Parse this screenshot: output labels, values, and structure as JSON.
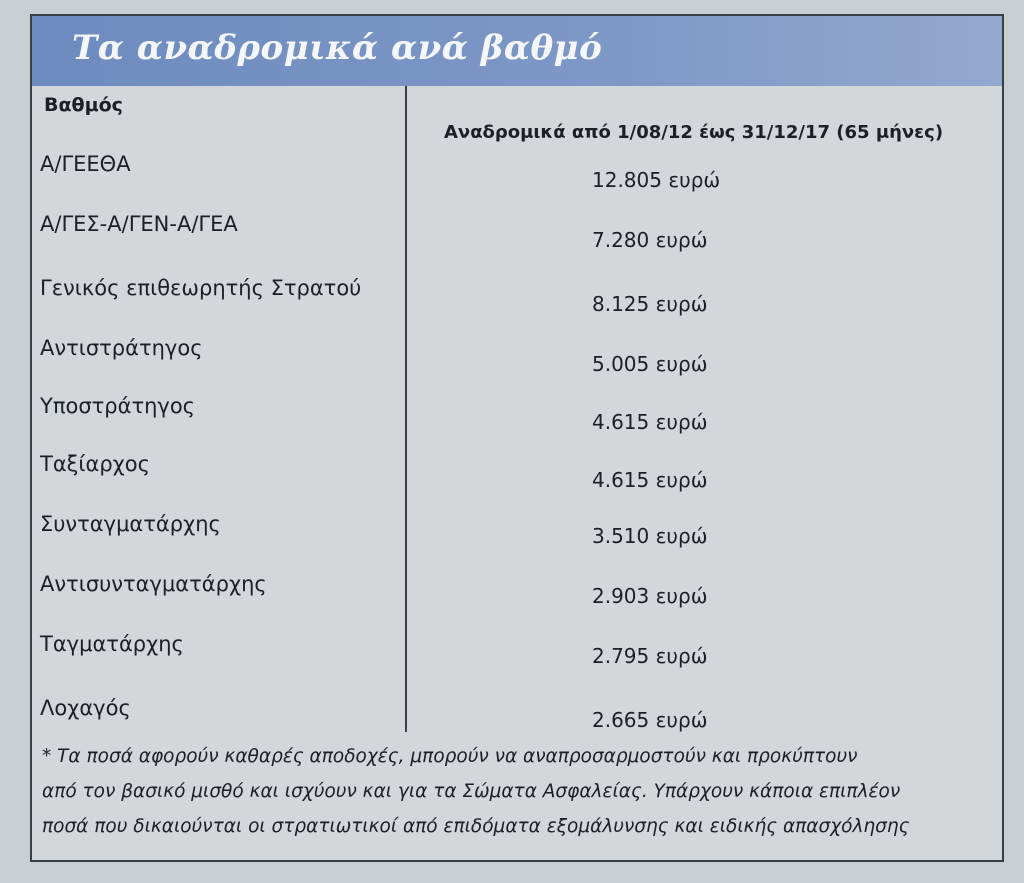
{
  "header": {
    "title": "Τα αναδρομικά ανά βαθμό"
  },
  "table": {
    "columns": [
      "Βαθμός",
      "Αναδρομικά από 1/08/12 έως 31/12/17 (65 μήνες)"
    ],
    "rows": [
      [
        "Α/ΓΕΕΘΑ",
        "12.805 ευρώ"
      ],
      [
        "Α/ΓΕΣ-Α/ΓΕΝ-Α/ΓΕΑ",
        "7.280 ευρώ"
      ],
      [
        "Γενικός επιθεωρητής Στρατού",
        "8.125 ευρώ"
      ],
      [
        "Αντιστράτηγος",
        "5.005 ευρώ"
      ],
      [
        "Υποστράτηγος",
        "4.615 ευρώ"
      ],
      [
        "Ταξίαρχος",
        "4.615 ευρώ"
      ],
      [
        "Συνταγματάρχης",
        "3.510 ευρώ"
      ],
      [
        "Αντισυνταγματάρχης",
        "2.903 ευρώ"
      ],
      [
        "Ταγματάρχης",
        "2.795 ευρώ"
      ],
      [
        "Λοχαγός",
        "2.665 ευρώ"
      ]
    ]
  },
  "footnote": [
    "* Τα ποσά αφορούν καθαρές αποδοχές, μπορούν να αναπροσαρμοστούν και προκύπτουν",
    "από τον βασικό μισθό και ισχύουν και για τα Σώματα Ασφαλείας. Υπάρχουν κάποια επιπλέον",
    "ποσά που δικαιούνται οι στρατιωτικοί από επιδόματα εξομάλυνσης και ειδικής απασχόλησης"
  ]
}
